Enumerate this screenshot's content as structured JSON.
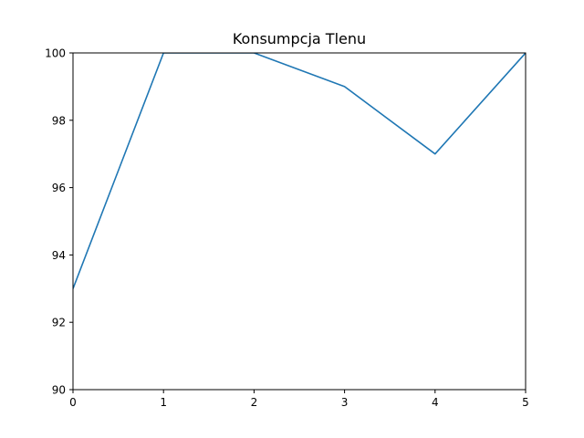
{
  "chart_data": {
    "type": "line",
    "title": "Konsumpcja Tlenu",
    "xlabel": "",
    "ylabel": "",
    "x": [
      0,
      1,
      2,
      3,
      4,
      5
    ],
    "series": [
      {
        "values": [
          93,
          100,
          100,
          99,
          97,
          100
        ],
        "color": "#1f77b4"
      }
    ],
    "xlim": [
      0,
      5
    ],
    "ylim": [
      90,
      100
    ],
    "xticks": [
      0,
      1,
      2,
      3,
      4,
      5
    ],
    "yticks": [
      90,
      92,
      94,
      96,
      98,
      100
    ],
    "xtick_labels": [
      "0",
      "1",
      "2",
      "3",
      "4",
      "5"
    ],
    "ytick_labels": [
      "90",
      "92",
      "94",
      "96",
      "98",
      "100"
    ],
    "grid": false,
    "legend": "none"
  }
}
